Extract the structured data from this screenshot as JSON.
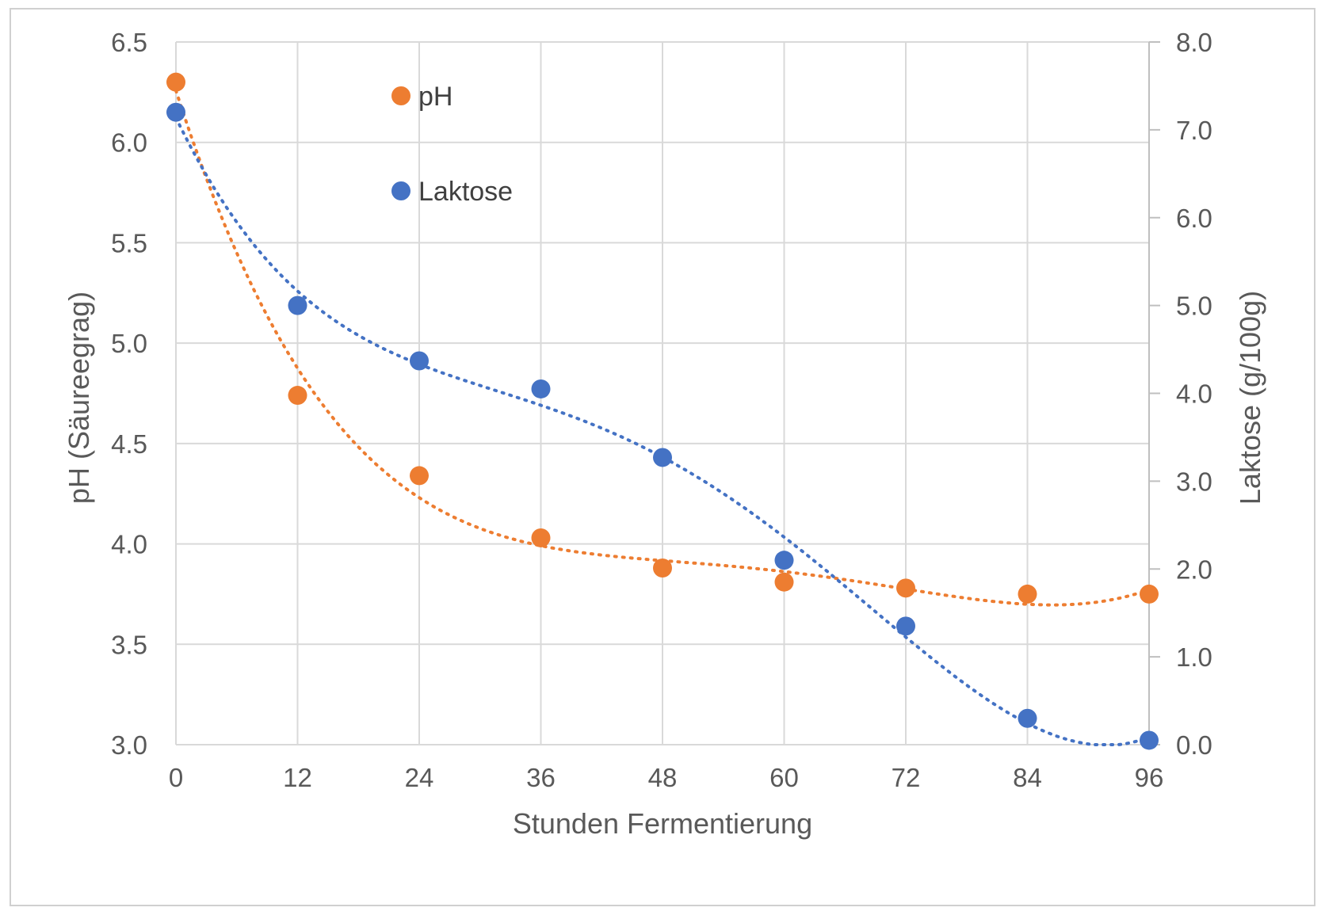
{
  "chart_data": {
    "type": "scatter",
    "title": "",
    "xlabel": "Stunden Fermentierung",
    "ylabel": "pH (Säureegrag)",
    "y2label": "Laktose (g/100g)",
    "xlim": [
      0,
      96
    ],
    "ylim": [
      3.0,
      6.5
    ],
    "y2lim": [
      0.0,
      8.0
    ],
    "x_ticks": [
      "0",
      "12",
      "24",
      "36",
      "48",
      "60",
      "72",
      "84",
      "96"
    ],
    "y_ticks": [
      "3.0",
      "3.5",
      "4.0",
      "4.5",
      "5.0",
      "5.5",
      "6.0",
      "6.5"
    ],
    "y2_ticks": [
      "0.0",
      "1.0",
      "2.0",
      "3.0",
      "4.0",
      "5.0",
      "6.0",
      "7.0",
      "8.0"
    ],
    "grid": true,
    "legend_position": "top-left",
    "series": [
      {
        "name": "pH",
        "axis": "left",
        "color": "#ED7D31",
        "trendline": "dotted polynomial",
        "x": [
          0,
          12,
          24,
          36,
          48,
          60,
          72,
          84,
          96
        ],
        "y": [
          6.3,
          4.74,
          4.34,
          4.03,
          3.88,
          3.81,
          3.78,
          3.75,
          3.75
        ]
      },
      {
        "name": "Laktose",
        "axis": "right",
        "color": "#4472C4",
        "trendline": "dotted polynomial",
        "x": [
          0,
          12,
          24,
          36,
          48,
          60,
          72,
          84,
          96
        ],
        "y": [
          7.2,
          5.0,
          4.37,
          4.05,
          3.27,
          2.1,
          1.35,
          0.3,
          0.05
        ]
      }
    ]
  }
}
